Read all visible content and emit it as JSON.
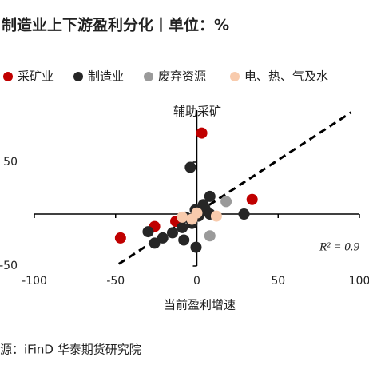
{
  "chart_data": {
    "type": "scatter",
    "title": "制造业上下游盈利分化丨单位：%",
    "x_label": "当前盈利增速",
    "annotations": [
      "辅助采矿",
      "R² = 0.9"
    ],
    "source": "源：iFinD  华泰期货研究院",
    "xlim": [
      -100,
      100
    ],
    "xticks": [
      -100,
      -50,
      0,
      50,
      100
    ],
    "ylim": [
      -50,
      100
    ],
    "yticks": [
      50,
      -50
    ],
    "series": [
      {
        "name": "采矿业",
        "color": "#c00000",
        "x": [
          3,
          34,
          -47,
          -26,
          -13
        ],
        "y": [
          78,
          14,
          -23,
          -12,
          -7
        ]
      },
      {
        "name": "制造业",
        "color": "#262626",
        "x": [
          -4,
          8,
          4,
          29,
          -1,
          -7,
          -3,
          -9,
          -15,
          -21,
          -26,
          -30,
          -8,
          -0.5,
          5,
          8,
          1
        ],
        "y": [
          45,
          17,
          9,
          0,
          4,
          -3,
          -9,
          -13,
          -18,
          -23,
          -28,
          -17,
          -25,
          -32,
          5,
          0,
          -2
        ]
      },
      {
        "name": "废弃资源",
        "color": "#9a9a9a",
        "x": [
          18,
          8
        ],
        "y": [
          12,
          -21
        ]
      },
      {
        "name": "电、热、气及水",
        "color": "#f8cbad",
        "x": [
          12,
          -3,
          -9,
          0
        ],
        "y": [
          -2,
          -5,
          -3,
          1
        ]
      }
    ],
    "trendline": {
      "x": [
        -48,
        95
      ],
      "y": [
        -48,
        98
      ]
    }
  }
}
